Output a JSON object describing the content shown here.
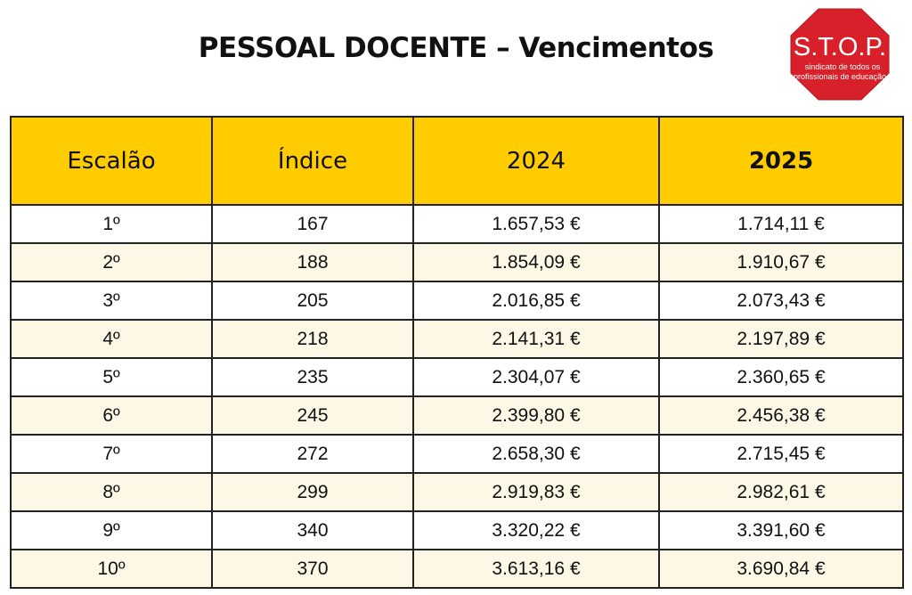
{
  "title": "PESSOAL DOCENTE – Vencimentos",
  "logo": {
    "main_text": "S.T.O.P.",
    "subtitle_line1": "sindicato de todos os",
    "subtitle_line2": "profissionais de educação",
    "color": "#d8202a"
  },
  "colors": {
    "header_bg": "#ffcc00",
    "row_alt_bg": "#fdf7e6",
    "border": "#222222"
  },
  "table": {
    "headers": [
      "Escalão",
      "Índice",
      "2024",
      "2025"
    ],
    "rows": [
      [
        "1º",
        "167",
        "1.657,53 €",
        "1.714,11 €"
      ],
      [
        "2º",
        "188",
        "1.854,09 €",
        "1.910,67 €"
      ],
      [
        "3º",
        "205",
        "2.016,85 €",
        "2.073,43 €"
      ],
      [
        "4º",
        "218",
        "2.141,31 €",
        "2.197,89 €"
      ],
      [
        "5º",
        "235",
        "2.304,07 €",
        "2.360,65 €"
      ],
      [
        "6º",
        "245",
        "2.399,80 €",
        "2.456,38 €"
      ],
      [
        "7º",
        "272",
        "2.658,30 €",
        "2.715,45 €"
      ],
      [
        "8º",
        "299",
        "2.919,83 €",
        "2.982,61 €"
      ],
      [
        "9º",
        "340",
        "3.320,22 €",
        "3.391,60 €"
      ],
      [
        "10º",
        "370",
        "3.613,16 €",
        "3.690,84 €"
      ]
    ]
  }
}
